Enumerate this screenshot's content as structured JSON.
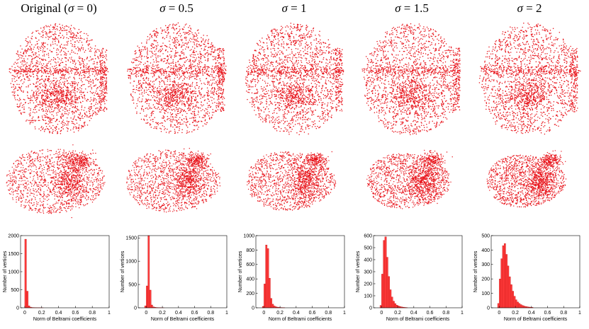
{
  "figure": {
    "columns": [
      {
        "prefix": "Original (",
        "sigma": "σ",
        "suffix": " = 0)"
      },
      {
        "prefix": "",
        "sigma": "σ",
        "suffix": " = 0.5"
      },
      {
        "prefix": "",
        "sigma": "σ",
        "suffix": " = 1"
      },
      {
        "prefix": "",
        "sigma": "σ",
        "suffix": " = 1.5"
      },
      {
        "prefix": "",
        "sigma": "σ",
        "suffix": " = 2"
      }
    ],
    "point_color": "#e8141b"
  },
  "chart_data": [
    {
      "type": "bar",
      "title": "",
      "xlabel": "Norm of Beltrami coefficients",
      "ylabel": "Number of vertices",
      "xlim": [
        -0.05,
        1
      ],
      "ylim": [
        0,
        2000
      ],
      "xticks": [
        "0",
        "0.2",
        "0.4",
        "0.6",
        "0.8",
        "1"
      ],
      "yticks": [
        "0",
        "500",
        "1000",
        "1500",
        "2000"
      ],
      "bin_width": 0.02,
      "x": [
        0.0,
        0.02,
        0.04,
        0.06,
        0.08,
        0.1,
        0.12,
        0.14,
        0.16,
        0.18,
        0.2
      ],
      "values": [
        1900,
        460,
        55,
        18,
        8,
        5,
        3,
        2,
        2,
        1,
        1
      ]
    },
    {
      "type": "bar",
      "title": "",
      "xlabel": "Norm of Beltrami coefficients",
      "ylabel": "Number of vertices",
      "xlim": [
        -0.1,
        1
      ],
      "ylim": [
        0,
        1550
      ],
      "xticks": [
        "0",
        "0.2",
        "0.4",
        "0.6",
        "0.8",
        "1"
      ],
      "yticks": [
        "0",
        "500",
        "1000",
        "1500"
      ],
      "bin_width": 0.02,
      "x": [
        -0.02,
        0.0,
        0.02,
        0.04,
        0.06,
        0.08,
        0.1,
        0.12,
        0.14,
        0.16,
        0.18,
        0.2
      ],
      "values": [
        40,
        470,
        1550,
        380,
        60,
        20,
        10,
        6,
        4,
        3,
        2,
        1
      ]
    },
    {
      "type": "bar",
      "title": "",
      "xlabel": "Norm of Beltrami coefficients",
      "ylabel": "Number of vertices",
      "xlim": [
        -0.1,
        1
      ],
      "ylim": [
        0,
        1000
      ],
      "xticks": [
        "0",
        "0.2",
        "0.4",
        "0.6",
        "0.8",
        "1"
      ],
      "yticks": [
        "0",
        "200",
        "400",
        "600",
        "800",
        "1000"
      ],
      "bin_width": 0.02,
      "x": [
        -0.02,
        0.0,
        0.02,
        0.04,
        0.06,
        0.08,
        0.1,
        0.12,
        0.14,
        0.16,
        0.18,
        0.2,
        0.22,
        0.24
      ],
      "values": [
        20,
        330,
        870,
        820,
        410,
        130,
        50,
        25,
        14,
        9,
        6,
        4,
        3,
        2
      ]
    },
    {
      "type": "bar",
      "title": "",
      "xlabel": "Norm of Beltrami coefficients",
      "ylabel": "Number of vertices",
      "xlim": [
        -0.1,
        1
      ],
      "ylim": [
        0,
        600
      ],
      "xticks": [
        "0",
        "0.2",
        "0.4",
        "0.6",
        "0.8",
        "1"
      ],
      "yticks": [
        "0",
        "100",
        "200",
        "300",
        "400",
        "500",
        "600"
      ],
      "bin_width": 0.02,
      "x": [
        -0.02,
        0.0,
        0.02,
        0.04,
        0.06,
        0.08,
        0.1,
        0.12,
        0.14,
        0.16,
        0.18,
        0.2,
        0.22,
        0.24,
        0.26,
        0.28,
        0.3
      ],
      "values": [
        20,
        280,
        560,
        590,
        420,
        260,
        150,
        90,
        55,
        35,
        22,
        15,
        10,
        7,
        5,
        3,
        2
      ]
    },
    {
      "type": "bar",
      "title": "",
      "xlabel": "Norm of Beltrami coefficients",
      "ylabel": "Number of vertices",
      "xlim": [
        -0.1,
        1
      ],
      "ylim": [
        0,
        500
      ],
      "xticks": [
        "0",
        "0.2",
        "0.4",
        "0.6",
        "0.8",
        "1"
      ],
      "yticks": [
        "0",
        "100",
        "200",
        "300",
        "400",
        "500"
      ],
      "bin_width": 0.02,
      "x": [
        -0.02,
        0.0,
        0.02,
        0.04,
        0.06,
        0.08,
        0.1,
        0.12,
        0.14,
        0.16,
        0.18,
        0.2,
        0.22,
        0.24,
        0.26,
        0.28,
        0.3,
        0.32,
        0.34,
        0.36,
        0.38,
        0.4
      ],
      "values": [
        30,
        200,
        340,
        430,
        445,
        370,
        290,
        215,
        160,
        115,
        80,
        55,
        40,
        30,
        22,
        16,
        12,
        9,
        7,
        5,
        4,
        3
      ]
    }
  ]
}
